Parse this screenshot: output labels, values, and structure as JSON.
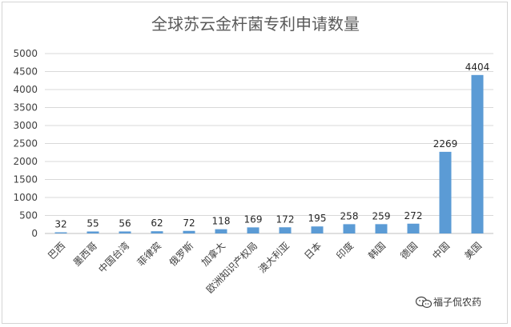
{
  "chart_data": {
    "type": "bar",
    "title": "全球苏云金杆菌专利申请数量",
    "xlabel": "",
    "ylabel": "",
    "categories": [
      "巴西",
      "墨西哥",
      "中国台湾",
      "菲律宾",
      "俄罗斯",
      "加拿大",
      "欧洲知识产权局",
      "澳大利亚",
      "日本",
      "印度",
      "韩国",
      "德国",
      "中国",
      "美国"
    ],
    "values": [
      32,
      55,
      56,
      62,
      72,
      118,
      169,
      172,
      195,
      258,
      259,
      272,
      2269,
      4404
    ],
    "ylim": [
      0,
      5000
    ],
    "yticks": [
      0,
      500,
      1000,
      1500,
      2000,
      2500,
      3000,
      3500,
      4000,
      4500,
      5000
    ],
    "grid": true,
    "legend": "none",
    "bar_color": "#5b9bd5"
  },
  "watermark": {
    "text": "福子侃农药",
    "icon": "wechat-icon"
  }
}
